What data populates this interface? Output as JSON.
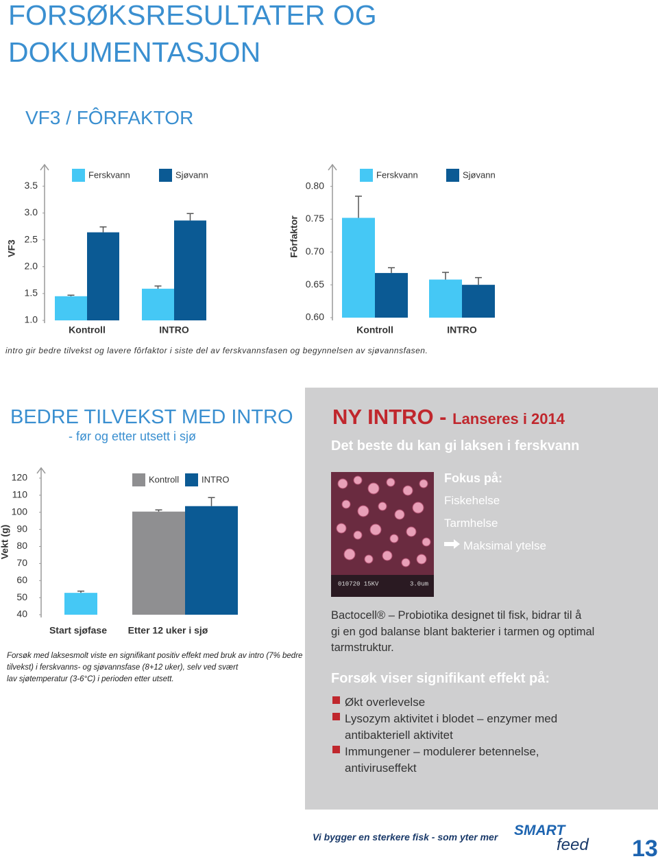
{
  "header": {
    "title_lines": [
      "FORSØKSRESULTATER OG",
      "DOKUMENTASJON"
    ],
    "section": "VF3 / FÔRFAKTOR"
  },
  "chart_data": [
    {
      "type": "bar",
      "y_label": "VF3",
      "categories": [
        "Kontroll",
        "INTRO"
      ],
      "series": [
        {
          "name": "Ferskvann",
          "color": "#45c8f5",
          "values": [
            1.45,
            1.59
          ],
          "errors": [
            0.02,
            0.05
          ]
        },
        {
          "name": "Sjøvann",
          "color": "#0b5a94",
          "values": [
            2.64,
            2.86
          ],
          "errors": [
            0.1,
            0.13
          ]
        }
      ],
      "ylim": [
        1.0,
        3.9
      ],
      "yticks": [
        {
          "value": 1.0,
          "label": "1.0"
        },
        1.5,
        {
          "value": 2.0,
          "label": "2.0"
        },
        2.5,
        {
          "value": 3.0,
          "label": "3.0"
        },
        3.5
      ]
    },
    {
      "type": "bar",
      "y_label": "Fôrfaktor",
      "categories": [
        "Kontroll",
        "INTRO"
      ],
      "series": [
        {
          "name": "Ferskvann",
          "color": "#45c8f5",
          "values": [
            0.752,
            0.658
          ],
          "errors": [
            0.033,
            0.011
          ]
        },
        {
          "name": "Sjøvann",
          "color": "#0b5a94",
          "values": [
            0.668,
            0.65
          ],
          "errors": [
            0.008,
            0.011
          ]
        }
      ],
      "ylim": [
        0.6,
        0.833
      ],
      "yticks": [
        {
          "value": 0.6,
          "label": "0.60"
        },
        0.65,
        {
          "value": 0.7,
          "label": "0.70"
        },
        0.75,
        {
          "value": 0.8,
          "label": "0.80"
        }
      ]
    },
    {
      "type": "bar",
      "y_label": "Vekt (g)",
      "categories": [
        "Start sjøfase",
        "Etter 12 uker i sjø"
      ],
      "start_value": 52.8,
      "start_error": 1,
      "start_color": "#45c8f5",
      "series": [
        {
          "name": "Kontroll",
          "color": "#8f8f91",
          "values": [
            null,
            100.4
          ],
          "errors": [
            null,
            1
          ]
        },
        {
          "name": "INTRO",
          "color": "#0b5a94",
          "values": [
            null,
            103.6
          ],
          "errors": [
            null,
            5
          ]
        }
      ],
      "ylim": [
        40,
        126
      ],
      "yticks": [
        40,
        50,
        60,
        70,
        80,
        90,
        100,
        110,
        120
      ]
    }
  ],
  "caption_top": "intro gir bedre tilvekst og lavere fôrfaktor i siste del av ferskvannsfasen og begynnelsen av sjøvannsfasen.",
  "growth": {
    "title": "BEDRE TILVEKST MED INTRO",
    "subtitle": "- før og etter utsett i sjø",
    "note_lines": [
      "Forsøk med laksesmolt viste en signifikant positiv effekt med bruk av intro (7% bedre",
      "tilvekst) i ferskvanns- og sjøvannsfase (8+12 uker), selv ved svært",
      "lav sjøtemperatur (3-6°C) i perioden etter utsett."
    ]
  },
  "panel": {
    "title": "NY INTRO - ",
    "title_small": "Lanseres i 2014",
    "subtitle": "Det beste du kan gi laksen i ferskvann",
    "image_code": "010720 15KV",
    "image_scale": "3.0um",
    "focus_title": "Fokus på:",
    "focus": [
      "Fiskehelse",
      "Tarmhelse",
      "Maksimal ytelse"
    ],
    "bactocell_lines": [
      "Bactocell® – Probiotika designet til fisk, bidrar til å",
      "gi en god balanse blant bakterier i tarmen og optimal",
      "tarmstruktur."
    ],
    "effect_title": "Forsøk viser signifikant effekt på:",
    "effects": [
      [
        "Økt overlevelse"
      ],
      [
        "Lysozym aktivitet i blodet – enzymer med",
        "antibakteriell aktivitet"
      ],
      [
        "Immungener – modulerer betennelse,",
        "antiviruseffekt"
      ]
    ]
  },
  "footer": {
    "slogan": "Vi bygger en sterkere fisk - som yter mer",
    "logo_top": "SMART",
    "logo_bottom": "feed",
    "page": "13"
  }
}
